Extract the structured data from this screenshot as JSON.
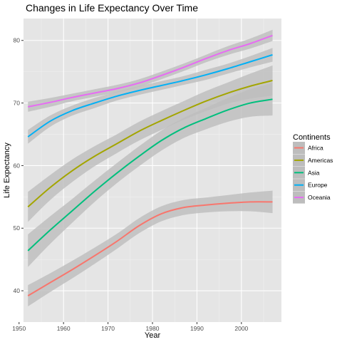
{
  "chart_data": {
    "type": "line",
    "title": "Changes in Life Expectancy Over Time",
    "xlabel": "Year",
    "ylabel": "Life Expectancy",
    "xlim": [
      1951,
      2009
    ],
    "ylim": [
      35,
      83.5
    ],
    "x_ticks": [
      1950,
      1960,
      1970,
      1980,
      1990,
      2000
    ],
    "y_ticks": [
      40,
      50,
      60,
      70,
      80
    ],
    "grid": true,
    "legend_title": "Continents",
    "legend_position": "right",
    "background": "#e5e5e5",
    "ribbon_color": "#bdbdbd",
    "series": [
      {
        "name": "Africa",
        "color": "#f8766d",
        "x": [
          1952,
          1957,
          1962,
          1967,
          1972,
          1977,
          1982,
          1987,
          1992,
          1997,
          2002,
          2007
        ],
        "y": [
          39.2,
          41.3,
          43.4,
          45.6,
          47.9,
          50.4,
          52.3,
          53.3,
          53.7,
          54.0,
          54.2,
          54.2
        ],
        "band": [
          1.7,
          1.5,
          1.4,
          1.3,
          1.2,
          1.2,
          1.2,
          1.2,
          1.2,
          1.3,
          1.5,
          1.8
        ]
      },
      {
        "name": "Americas",
        "color": "#a3a500",
        "x": [
          1952,
          1957,
          1962,
          1967,
          1972,
          1977,
          1982,
          1987,
          1992,
          1997,
          2002,
          2007
        ],
        "y": [
          53.4,
          56.5,
          59.2,
          61.5,
          63.5,
          65.5,
          67.2,
          68.8,
          70.3,
          71.6,
          72.7,
          73.6
        ],
        "band": [
          2.4,
          2.0,
          1.8,
          1.6,
          1.5,
          1.5,
          1.5,
          1.5,
          1.6,
          1.7,
          2.0,
          2.4
        ]
      },
      {
        "name": "Asia",
        "color": "#00bf7d",
        "x": [
          1952,
          1957,
          1962,
          1967,
          1972,
          1977,
          1982,
          1987,
          1992,
          1997,
          2002,
          2007
        ],
        "y": [
          46.4,
          49.7,
          52.8,
          55.9,
          58.8,
          61.5,
          64.0,
          66.0,
          67.5,
          68.9,
          70.0,
          70.6
        ],
        "band": [
          2.6,
          2.2,
          1.9,
          1.7,
          1.6,
          1.6,
          1.6,
          1.6,
          1.7,
          1.9,
          2.2,
          2.6
        ]
      },
      {
        "name": "Europe",
        "color": "#00b0f6",
        "x": [
          1952,
          1957,
          1962,
          1967,
          1972,
          1977,
          1982,
          1987,
          1992,
          1997,
          2002,
          2007
        ],
        "y": [
          64.6,
          67.1,
          68.8,
          70.0,
          71.1,
          72.0,
          72.8,
          73.6,
          74.5,
          75.5,
          76.6,
          77.7
        ],
        "band": [
          1.1,
          0.9,
          0.8,
          0.8,
          0.7,
          0.7,
          0.7,
          0.7,
          0.8,
          0.8,
          0.9,
          1.1
        ]
      },
      {
        "name": "Oceania",
        "color": "#e76bf3",
        "x": [
          1952,
          1957,
          1962,
          1967,
          1972,
          1977,
          1982,
          1987,
          1992,
          1997,
          2002,
          2007
        ],
        "y": [
          69.4,
          70.1,
          70.9,
          71.6,
          72.3,
          73.2,
          74.4,
          75.7,
          77.1,
          78.4,
          79.5,
          80.8
        ],
        "band": [
          0.8,
          0.7,
          0.6,
          0.6,
          0.6,
          0.6,
          0.6,
          0.6,
          0.6,
          0.7,
          0.8,
          0.9
        ]
      }
    ]
  }
}
